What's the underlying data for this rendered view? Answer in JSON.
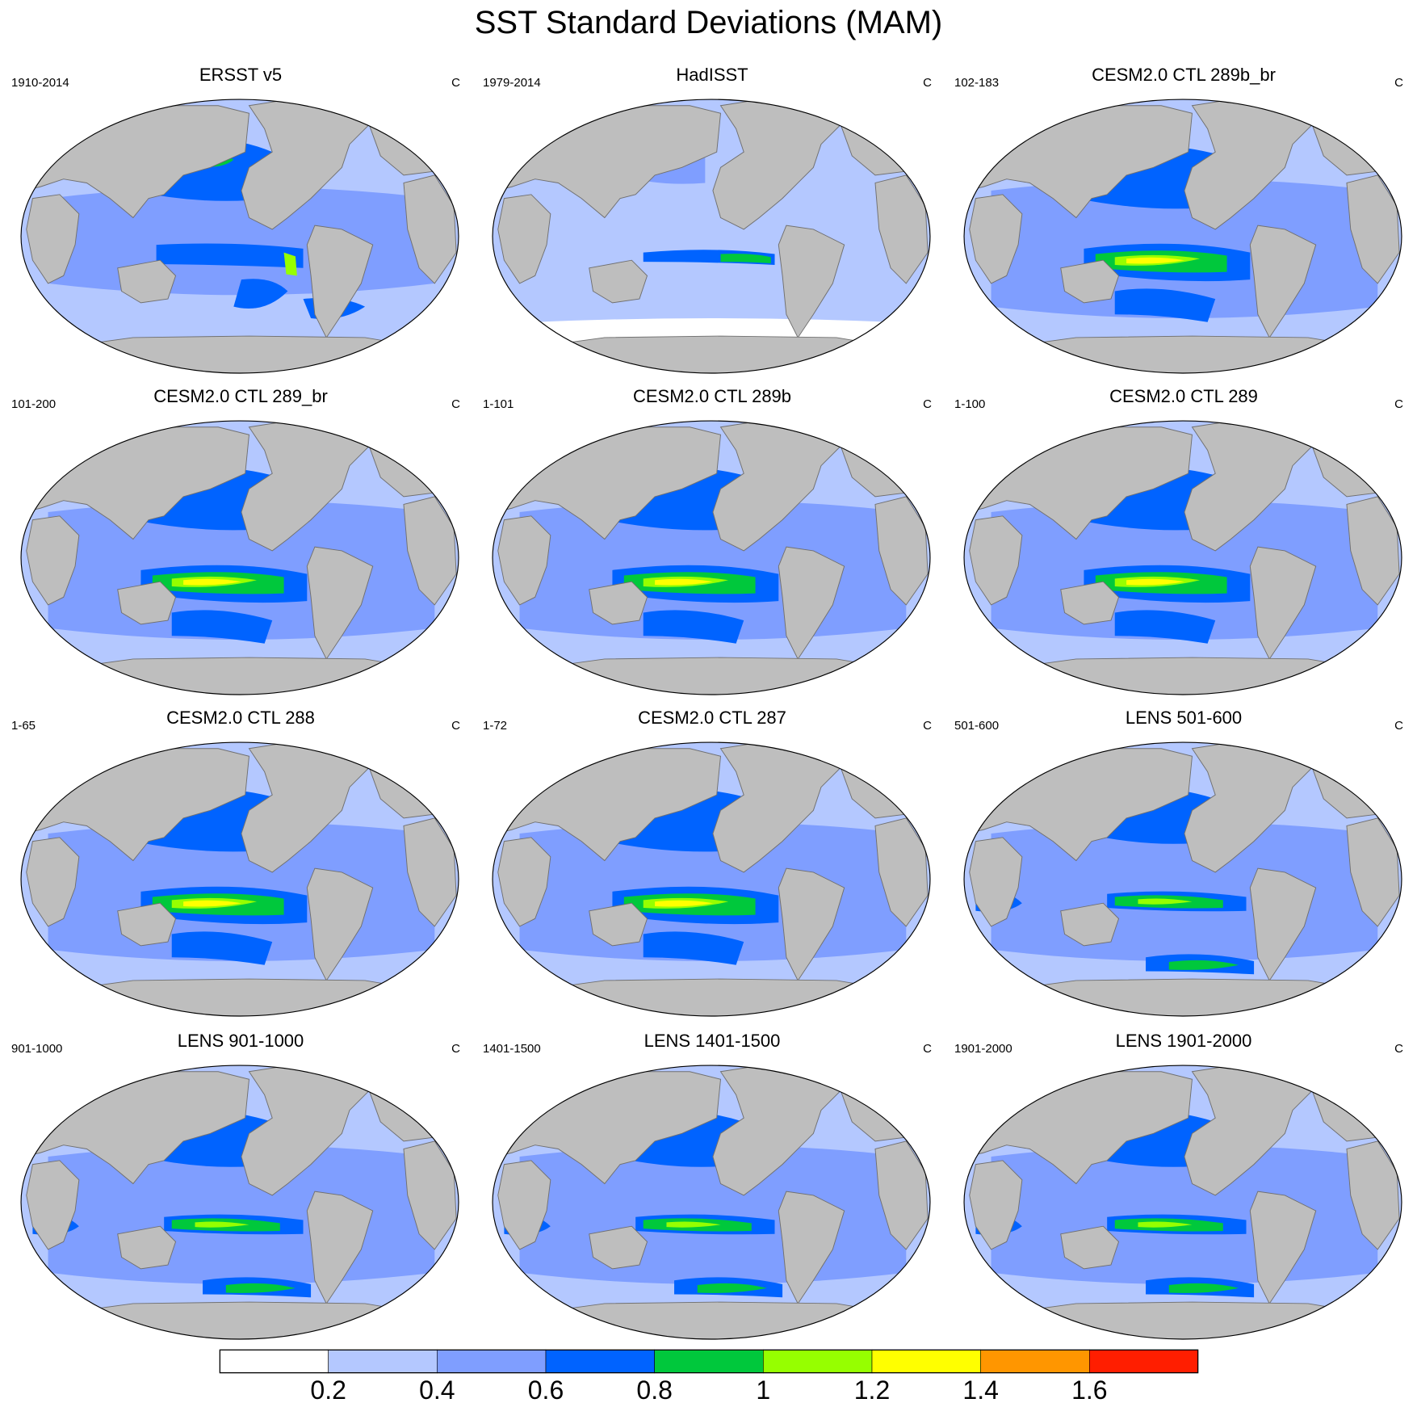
{
  "title": "SST Standard Deviations (MAM)",
  "panels": [
    {
      "title": "ERSST v5",
      "years": "1910-2014",
      "unit": "C",
      "variant": "obs1"
    },
    {
      "title": "HadISST",
      "years": "1979-2014",
      "unit": "C",
      "variant": "obs2"
    },
    {
      "title": "CESM2.0 CTL 289b_br",
      "years": "102-183",
      "unit": "C",
      "variant": "model"
    },
    {
      "title": "CESM2.0 CTL 289_br",
      "years": "101-200",
      "unit": "C",
      "variant": "model"
    },
    {
      "title": "CESM2.0 CTL 289b",
      "years": "1-101",
      "unit": "C",
      "variant": "model"
    },
    {
      "title": "CESM2.0 CTL 289",
      "years": "1-100",
      "unit": "C",
      "variant": "model"
    },
    {
      "title": "CESM2.0 CTL 288",
      "years": "1-65",
      "unit": "C",
      "variant": "model"
    },
    {
      "title": "CESM2.0 CTL 287",
      "years": "1-72",
      "unit": "C",
      "variant": "model"
    },
    {
      "title": "LENS 501-600",
      "years": "501-600",
      "unit": "C",
      "variant": "lens"
    },
    {
      "title": "LENS 901-1000",
      "years": "901-1000",
      "unit": "C",
      "variant": "lens"
    },
    {
      "title": "LENS 1401-1500",
      "years": "1401-1500",
      "unit": "C",
      "variant": "lens"
    },
    {
      "title": "LENS 1901-2000",
      "years": "1901-2000",
      "unit": "C",
      "variant": "lens"
    }
  ],
  "colorbar": {
    "colors": [
      "#ffffff",
      "#b4c8ff",
      "#7f9eff",
      "#0063ff",
      "#00c83c",
      "#96ff00",
      "#ffff00",
      "#ff9600",
      "#ff1e00"
    ],
    "labels": [
      "0.2",
      "0.4",
      "0.6",
      "0.8",
      "1",
      "1.2",
      "1.4",
      "1.6"
    ]
  },
  "land_color": "#bebebe"
}
